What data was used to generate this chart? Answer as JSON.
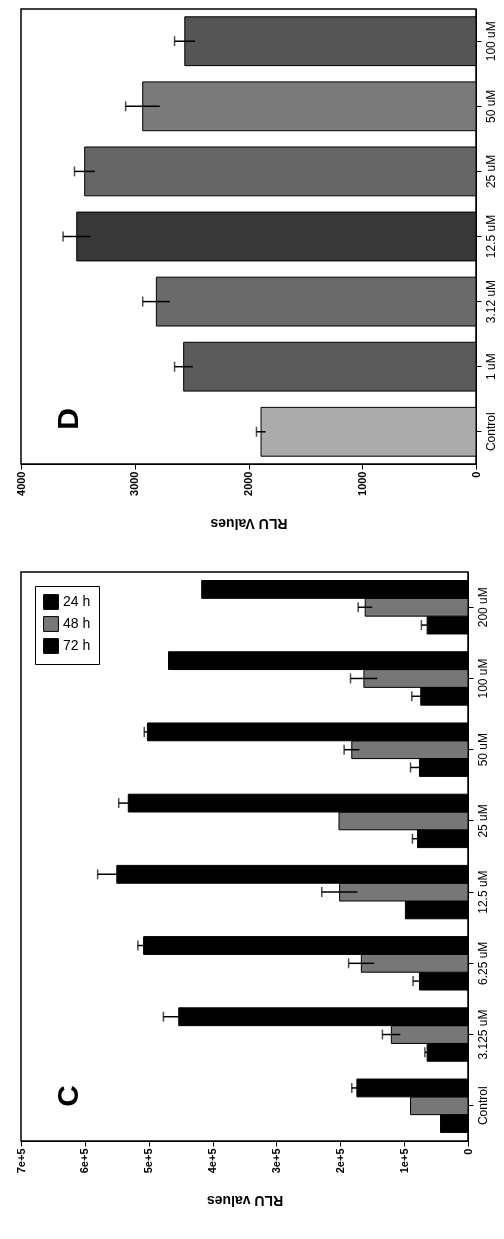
{
  "chart_data": [
    {
      "type": "bar",
      "orientation": "horizontal",
      "xlabel": "RLU Values",
      "annotations": [
        "D"
      ],
      "categories": [
        "100 uM",
        "50 uM",
        "25 uM",
        "12.5 uM",
        "3.12 uM",
        "1 uM",
        "Control"
      ],
      "values": [
        2560,
        2930,
        3440,
        3510,
        2810,
        2570,
        1890
      ],
      "errors": [
        90,
        150,
        90,
        120,
        120,
        80,
        40
      ],
      "colors": [
        "#555555",
        "#7a7a7a",
        "#666666",
        "#383838",
        "#6a6a6a",
        "#5a5a5a",
        "#ababab"
      ],
      "xlim": [
        4000,
        0
      ],
      "xticks": [
        4000,
        3000,
        2000,
        1000,
        0
      ]
    },
    {
      "type": "bar",
      "orientation": "horizontal",
      "xlabel": "RLU values",
      "annotations": [
        "C"
      ],
      "legend": "top left",
      "categories": [
        "200 uM",
        "100 uM",
        "50 uM",
        "25 uM",
        "12.5 uM",
        "6.25 uM",
        "3.125 uM",
        "Control"
      ],
      "series": [
        {
          "name": "24 h",
          "color": "#000000",
          "values": [
            64000,
            74000,
            76000,
            79000,
            98000,
            76000,
            64000,
            43000
          ],
          "errors": [
            9000,
            14000,
            14000,
            8000,
            null,
            10000,
            3500,
            null
          ]
        },
        {
          "name": "48 h",
          "color": "#777777",
          "values": [
            161000,
            163000,
            182000,
            202000,
            201000,
            167000,
            120000,
            90000
          ],
          "errors": [
            11000,
            21000,
            12000,
            null,
            28000,
            20000,
            14000,
            null
          ]
        },
        {
          "name": "72 h",
          "color": "#000000",
          "values": [
            417000,
            469000,
            502000,
            532000,
            550000,
            508000,
            453000,
            174000
          ],
          "errors": [
            null,
            null,
            5000,
            15000,
            30000,
            9000,
            24000,
            8000
          ]
        }
      ],
      "xlim": [
        700000,
        0
      ],
      "xticks": [
        {
          "value": 700000,
          "label": "7e+5"
        },
        {
          "value": 600000,
          "label": "6e+5"
        },
        {
          "value": 500000,
          "label": "5e+5"
        },
        {
          "value": 400000,
          "label": "4e+5"
        },
        {
          "value": 300000,
          "label": "3e+5"
        },
        {
          "value": 200000,
          "label": "2e+5"
        },
        {
          "value": 100000,
          "label": "1e+5"
        },
        0
      ]
    }
  ]
}
